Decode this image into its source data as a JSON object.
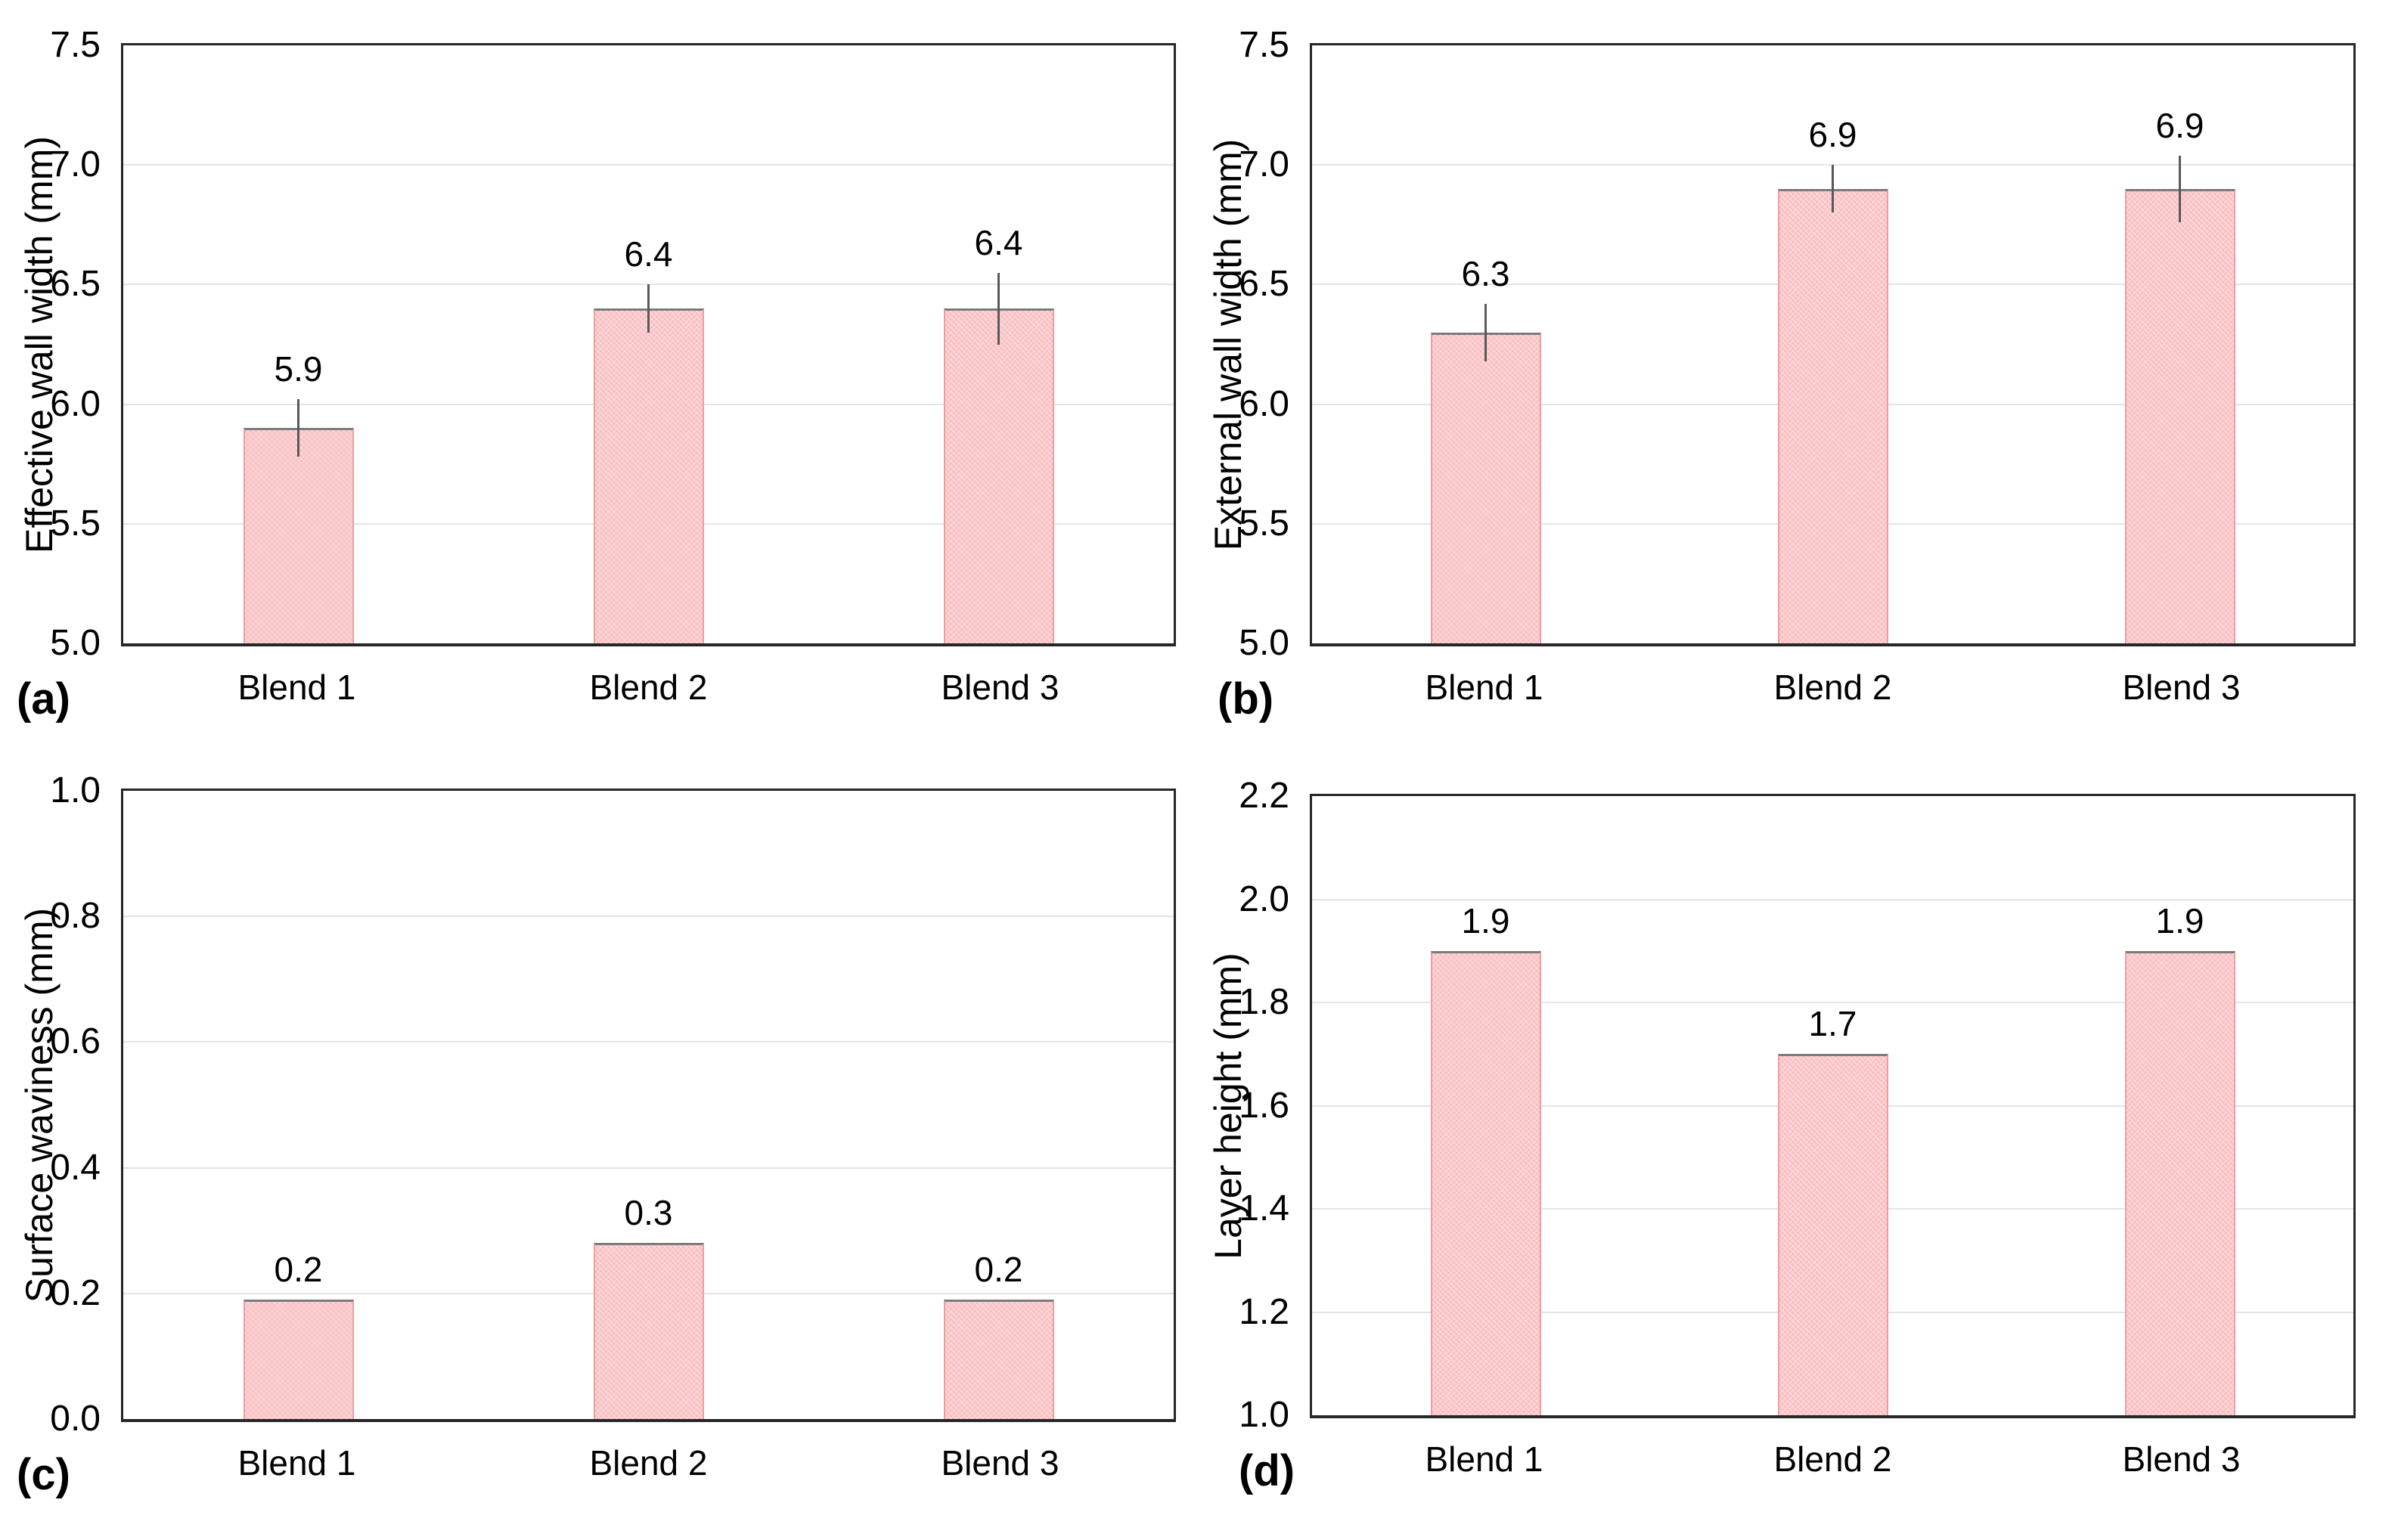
{
  "figure": {
    "background": "#ffffff",
    "panel_letters": [
      "(a)",
      "(b)",
      "(c)",
      "(d)"
    ]
  },
  "colors": {
    "bar_fill": "#fac0c3",
    "bar_border": "#ef9da1",
    "bar_top_border": "#7b7b7b",
    "error_bar": "#595959",
    "gridline": "#e4e4e4",
    "axis_border": "#262626",
    "text": "#000000"
  },
  "chart_data": [
    {
      "type": "bar",
      "panel": "(a)",
      "title": "",
      "xlabel": "",
      "ylabel": "Effective wall width (mm)",
      "ymin": 5.0,
      "ymax": 7.5,
      "ystep": 0.5,
      "grid": true,
      "legend_position": "none",
      "categories": [
        "Blend 1",
        "Blend 2",
        "Blend 3"
      ],
      "values": [
        5.9,
        6.4,
        6.4
      ],
      "value_labels": [
        "5.9",
        "6.4",
        "6.4"
      ],
      "error_bars": [
        0.12,
        0.1,
        0.15
      ]
    },
    {
      "type": "bar",
      "panel": "(b)",
      "title": "",
      "xlabel": "",
      "ylabel": "External wall width (mm)",
      "ymin": 5.0,
      "ymax": 7.5,
      "ystep": 0.5,
      "grid": true,
      "legend_position": "none",
      "categories": [
        "Blend 1",
        "Blend 2",
        "Blend 3"
      ],
      "values": [
        6.3,
        6.9,
        6.9
      ],
      "value_labels": [
        "6.3",
        "6.9",
        "6.9"
      ],
      "error_bars": [
        0.12,
        0.1,
        0.14
      ]
    },
    {
      "type": "bar",
      "panel": "(c)",
      "title": "",
      "xlabel": "",
      "ylabel": "Surface waviness (mm)",
      "ymin": 0.0,
      "ymax": 1.0,
      "ystep": 0.2,
      "grid": true,
      "legend_position": "none",
      "categories": [
        "Blend 1",
        "Blend 2",
        "Blend 3"
      ],
      "values": [
        0.19,
        0.28,
        0.19
      ],
      "value_labels": [
        "0.2",
        "0.3",
        "0.2"
      ],
      "error_bars": null
    },
    {
      "type": "bar",
      "panel": "(d)",
      "title": "",
      "xlabel": "",
      "ylabel": "Layer height (mm)",
      "ymin": 1.0,
      "ymax": 2.2,
      "ystep": 0.2,
      "grid": true,
      "legend_position": "none",
      "categories": [
        "Blend 1",
        "Blend 2",
        "Blend 3"
      ],
      "values": [
        1.9,
        1.7,
        1.9
      ],
      "value_labels": [
        "1.9",
        "1.7",
        "1.9"
      ],
      "error_bars": null
    }
  ]
}
